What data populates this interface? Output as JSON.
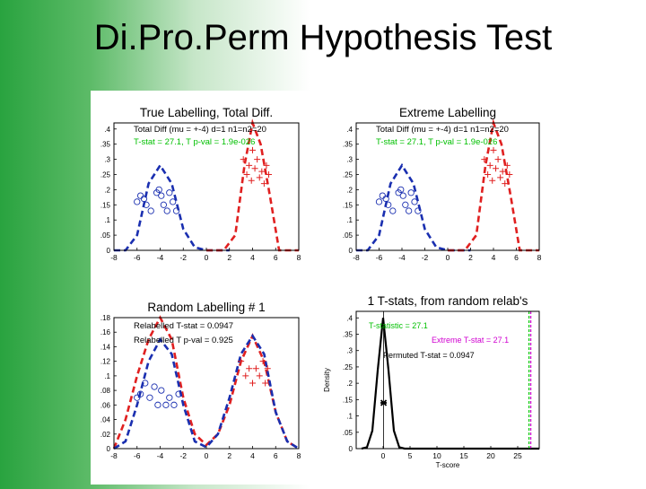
{
  "slide_title": "Di.Pro.Perm Hypothesis Test",
  "chart_data": [
    {
      "type": "line",
      "title": "True Labelling, Total Diff.",
      "xlim": [
        -8,
        8
      ],
      "ylim": [
        0,
        0.42
      ],
      "xticks": [
        -8,
        -6,
        -4,
        -2,
        0,
        2,
        4,
        6,
        8
      ],
      "yticks": [
        0,
        0.05,
        0.1,
        0.15,
        0.2,
        0.25,
        0.3,
        0.35,
        0.4
      ],
      "annotations": [
        {
          "text": "Total Diff (mu = +-4) d=1 n1=n2=20",
          "color": "#000000"
        },
        {
          "text": "T-stat = 27.1, T p-val = 1.9e-026",
          "color": "#00c000"
        }
      ],
      "series": [
        {
          "style": "dashed",
          "color": "#1a2fb0",
          "points": [
            [
              -8,
              0.0
            ],
            [
              -7,
              0.0
            ],
            [
              -6,
              0.05
            ],
            [
              -5,
              0.22
            ],
            [
              -4,
              0.28
            ],
            [
              -3,
              0.22
            ],
            [
              -2,
              0.07
            ],
            [
              -1,
              0.01
            ],
            [
              0,
              0.0
            ],
            [
              2,
              0.0
            ]
          ]
        },
        {
          "style": "dashed",
          "color": "#e02020",
          "points": [
            [
              0,
              0.0
            ],
            [
              1.5,
              0.0
            ],
            [
              2.5,
              0.05
            ],
            [
              3.3,
              0.28
            ],
            [
              4,
              0.42
            ],
            [
              4.7,
              0.35
            ],
            [
              5.5,
              0.18
            ],
            [
              6.3,
              0.0
            ],
            [
              8,
              0.0
            ]
          ]
        }
      ],
      "markers": [
        {
          "shape": "circle",
          "color": "#1a2fb0",
          "points": [
            [
              -6,
              0.16
            ],
            [
              -5.7,
              0.18
            ],
            [
              -5.4,
              0.17
            ],
            [
              -5.2,
              0.15
            ],
            [
              -4.8,
              0.13
            ],
            [
              -4.3,
              0.19
            ],
            [
              -4.1,
              0.2
            ],
            [
              -3.9,
              0.18
            ],
            [
              -3.7,
              0.15
            ],
            [
              -3.4,
              0.13
            ],
            [
              -3.2,
              0.19
            ],
            [
              -2.9,
              0.16
            ],
            [
              -2.6,
              0.13
            ]
          ]
        },
        {
          "shape": "plus",
          "color": "#e02020",
          "points": [
            [
              3.2,
              0.3
            ],
            [
              3.5,
              0.25
            ],
            [
              3.7,
              0.28
            ],
            [
              3.9,
              0.23
            ],
            [
              4,
              0.33
            ],
            [
              4.2,
              0.27
            ],
            [
              4.4,
              0.3
            ],
            [
              4.6,
              0.24
            ],
            [
              4.8,
              0.26
            ],
            [
              5,
              0.22
            ],
            [
              5.2,
              0.28
            ],
            [
              5.4,
              0.25
            ]
          ]
        }
      ]
    },
    {
      "type": "line",
      "title": "Extreme Labelling",
      "xlim": [
        -8,
        8
      ],
      "ylim": [
        0,
        0.42
      ],
      "xticks": [
        -8,
        -6,
        -4,
        -2,
        0,
        2,
        4,
        6,
        8
      ],
      "yticks": [
        0,
        0.05,
        0.1,
        0.15,
        0.2,
        0.25,
        0.3,
        0.35,
        0.4
      ],
      "annotations": [
        {
          "text": "Total Diff (mu = +-4) d=1 n1=n2=20",
          "color": "#000000"
        },
        {
          "text": "T-stat = 27.1, T p-val = 1.9e-026",
          "color": "#00c000"
        }
      ],
      "series": [
        {
          "style": "dashed",
          "color": "#1a2fb0",
          "points": [
            [
              -8,
              0.0
            ],
            [
              -7,
              0.0
            ],
            [
              -6,
              0.05
            ],
            [
              -5,
              0.22
            ],
            [
              -4,
              0.28
            ],
            [
              -3,
              0.22
            ],
            [
              -2,
              0.07
            ],
            [
              -1,
              0.01
            ],
            [
              0,
              0.0
            ],
            [
              2,
              0.0
            ]
          ]
        },
        {
          "style": "dashed",
          "color": "#e02020",
          "points": [
            [
              0,
              0.0
            ],
            [
              1.5,
              0.0
            ],
            [
              2.5,
              0.05
            ],
            [
              3.3,
              0.28
            ],
            [
              4,
              0.42
            ],
            [
              4.7,
              0.35
            ],
            [
              5.5,
              0.18
            ],
            [
              6.3,
              0.0
            ],
            [
              8,
              0.0
            ]
          ]
        }
      ],
      "markers": [
        {
          "shape": "circle",
          "color": "#1a2fb0",
          "points": [
            [
              -6,
              0.16
            ],
            [
              -5.7,
              0.18
            ],
            [
              -5.4,
              0.17
            ],
            [
              -5.2,
              0.15
            ],
            [
              -4.8,
              0.13
            ],
            [
              -4.3,
              0.19
            ],
            [
              -4.1,
              0.2
            ],
            [
              -3.9,
              0.18
            ],
            [
              -3.7,
              0.15
            ],
            [
              -3.4,
              0.13
            ],
            [
              -3.2,
              0.19
            ],
            [
              -2.9,
              0.16
            ],
            [
              -2.6,
              0.13
            ]
          ]
        },
        {
          "shape": "plus",
          "color": "#e02020",
          "points": [
            [
              3.2,
              0.3
            ],
            [
              3.5,
              0.25
            ],
            [
              3.7,
              0.28
            ],
            [
              3.9,
              0.23
            ],
            [
              4,
              0.33
            ],
            [
              4.2,
              0.27
            ],
            [
              4.4,
              0.3
            ],
            [
              4.6,
              0.24
            ],
            [
              4.8,
              0.26
            ],
            [
              5,
              0.22
            ],
            [
              5.2,
              0.28
            ],
            [
              5.4,
              0.25
            ]
          ]
        }
      ]
    },
    {
      "type": "line",
      "title": "Random Labelling # 1",
      "xlim": [
        -8,
        8
      ],
      "ylim": [
        0,
        0.18
      ],
      "xticks": [
        -8,
        -6,
        -4,
        -2,
        0,
        2,
        4,
        6,
        8
      ],
      "yticks": [
        0,
        0.02,
        0.04,
        0.06,
        0.08,
        0.1,
        0.12,
        0.14,
        0.16,
        0.18
      ],
      "annotations": [
        {
          "text": "Relabelled T-stat = 0.0947",
          "color": "#000000"
        },
        {
          "text": "Relabelled T p-val = 0.925",
          "color": "#000000"
        }
      ],
      "series": [
        {
          "style": "dashed",
          "color": "#e02020",
          "points": [
            [
              -8,
              0.0
            ],
            [
              -7,
              0.04
            ],
            [
              -6,
              0.1
            ],
            [
              -5,
              0.15
            ],
            [
              -4,
              0.18
            ],
            [
              -3,
              0.15
            ],
            [
              -2,
              0.07
            ],
            [
              -1,
              0.02
            ],
            [
              0,
              0.005
            ],
            [
              1,
              0.02
            ],
            [
              2,
              0.06
            ],
            [
              3,
              0.12
            ],
            [
              4,
              0.155
            ],
            [
              5,
              0.12
            ],
            [
              6,
              0.05
            ],
            [
              7,
              0.01
            ],
            [
              8,
              0.0
            ]
          ]
        },
        {
          "style": "dashed",
          "color": "#1a2fb0",
          "points": [
            [
              -8,
              0.0
            ],
            [
              -7,
              0.01
            ],
            [
              -6,
              0.06
            ],
            [
              -5,
              0.12
            ],
            [
              -4,
              0.15
            ],
            [
              -3,
              0.13
            ],
            [
              -2,
              0.06
            ],
            [
              -1,
              0.01
            ],
            [
              0,
              0.002
            ],
            [
              1,
              0.02
            ],
            [
              2,
              0.07
            ],
            [
              3,
              0.13
            ],
            [
              4,
              0.155
            ],
            [
              5,
              0.13
            ],
            [
              6,
              0.05
            ],
            [
              7,
              0.01
            ],
            [
              8,
              0.0
            ]
          ]
        }
      ],
      "markers": [
        {
          "shape": "circle",
          "color": "#1a2fb0",
          "points": [
            [
              -6,
              0.07
            ],
            [
              -5.7,
              0.075
            ],
            [
              -5.3,
              0.09
            ],
            [
              -4.9,
              0.07
            ],
            [
              -4.5,
              0.085
            ],
            [
              -4.2,
              0.06
            ],
            [
              -3.9,
              0.08
            ],
            [
              -3.5,
              0.06
            ],
            [
              -3.2,
              0.07
            ],
            [
              -2.8,
              0.06
            ],
            [
              -2.4,
              0.075
            ]
          ]
        },
        {
          "shape": "plus",
          "color": "#e02020",
          "points": [
            [
              3,
              0.12
            ],
            [
              3.4,
              0.1
            ],
            [
              3.7,
              0.11
            ],
            [
              4,
              0.09
            ],
            [
              4.3,
              0.11
            ],
            [
              4.6,
              0.1
            ],
            [
              4.9,
              0.12
            ],
            [
              5.1,
              0.09
            ],
            [
              5.3,
              0.11
            ]
          ]
        }
      ]
    },
    {
      "type": "line",
      "title": "1 T-stats, from random relab's",
      "xlabel": "T-score",
      "ylabel": "Density",
      "xlim": [
        -5,
        29
      ],
      "ylim": [
        0,
        0.42
      ],
      "xticks": [
        0,
        5,
        10,
        15,
        20,
        25
      ],
      "yticks": [
        0,
        0.05,
        0.1,
        0.15,
        0.2,
        0.25,
        0.3,
        0.35,
        0.4
      ],
      "annotations": [
        {
          "text": "T-statistic = 27.1",
          "color": "#00c000"
        },
        {
          "text": "Extreme T-stat = 27.1",
          "color": "#d000d0"
        },
        {
          "text": "Permuted T-stat = 0.0947",
          "color": "#000000"
        }
      ],
      "series": [
        {
          "style": "solid",
          "color": "#000000",
          "points": [
            [
              -4,
              0.0
            ],
            [
              -3,
              0.004
            ],
            [
              -2,
              0.055
            ],
            [
              -1,
              0.24
            ],
            [
              0,
              0.4
            ],
            [
              1,
              0.24
            ],
            [
              2,
              0.055
            ],
            [
              3,
              0.004
            ],
            [
              4,
              0.0
            ],
            [
              29,
              0.0
            ]
          ]
        }
      ],
      "vlines": [
        {
          "x": 0.0947,
          "color": "#000000"
        },
        {
          "x": 27.1,
          "color": "#00c000"
        },
        {
          "x": 27.1,
          "color": "#d000d0"
        }
      ],
      "markers": [
        {
          "shape": "star",
          "color": "#000000",
          "points": [
            [
              0.0947,
              0.14
            ]
          ]
        }
      ]
    }
  ]
}
